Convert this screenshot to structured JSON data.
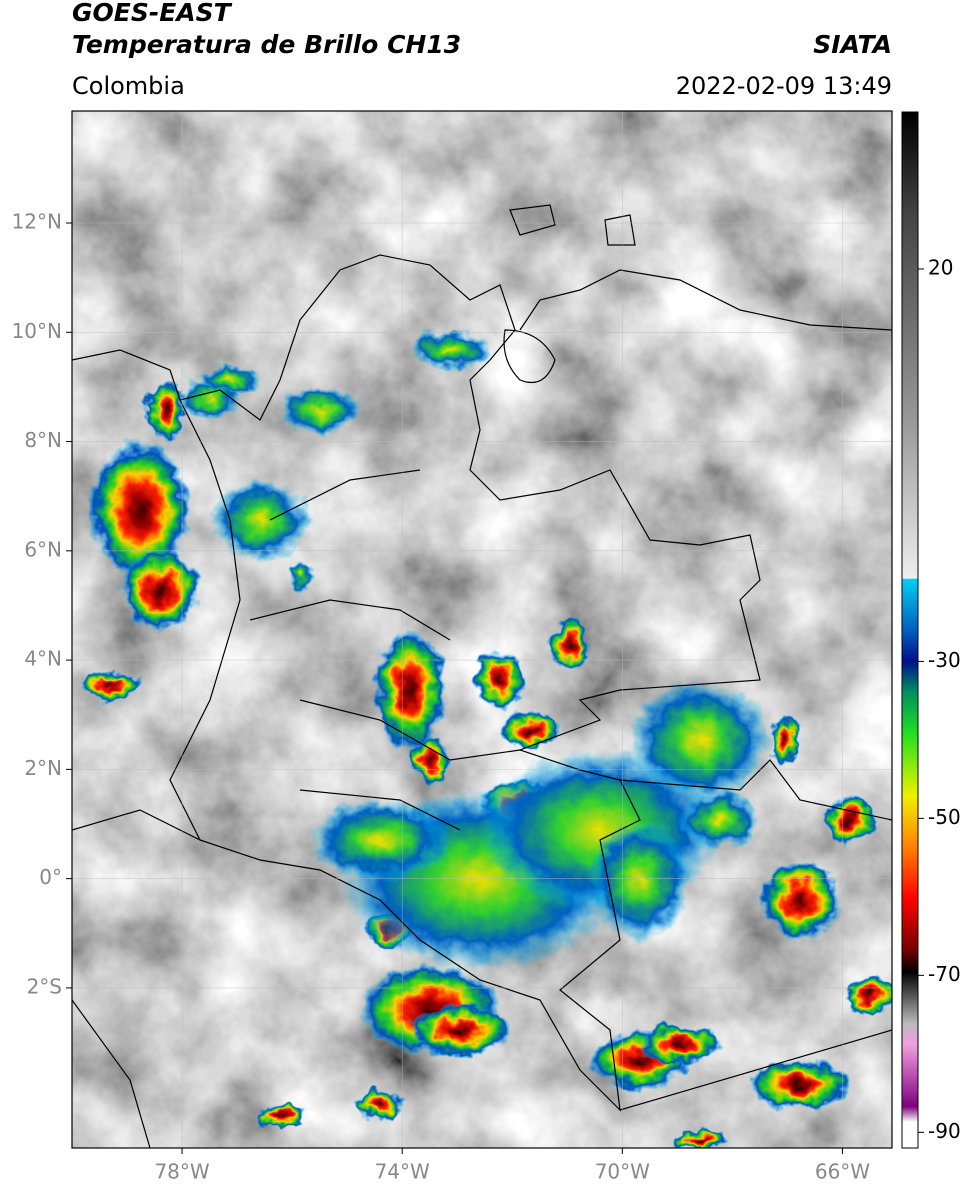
{
  "header": {
    "title_line1": "GOES-EAST",
    "title_line2": "Temperatura de Brillo CH13",
    "region": "Colombia",
    "source": "SIATA",
    "timestamp": "2022-02-09 13:49"
  },
  "map": {
    "lon_range": [
      -80,
      -65.1
    ],
    "lat_range": [
      -4.93,
      14.05
    ],
    "lon_ticks": [
      {
        "value": -78,
        "label": "78°W"
      },
      {
        "value": -74,
        "label": "74°W"
      },
      {
        "value": -70,
        "label": "70°W"
      },
      {
        "value": -66,
        "label": "66°W"
      }
    ],
    "lat_ticks": [
      {
        "value": 12,
        "label": "12°N"
      },
      {
        "value": 10,
        "label": "10°N"
      },
      {
        "value": 8,
        "label": "8°N"
      },
      {
        "value": 6,
        "label": "6°N"
      },
      {
        "value": 4,
        "label": "4°N"
      },
      {
        "value": 2,
        "label": "2°N"
      },
      {
        "value": 0,
        "label": "0°"
      },
      {
        "value": -2,
        "label": "2°S"
      }
    ]
  },
  "colorbar": {
    "range": [
      -92,
      40
    ],
    "ticks": [
      20,
      -30,
      -50,
      -70,
      -90
    ]
  }
}
